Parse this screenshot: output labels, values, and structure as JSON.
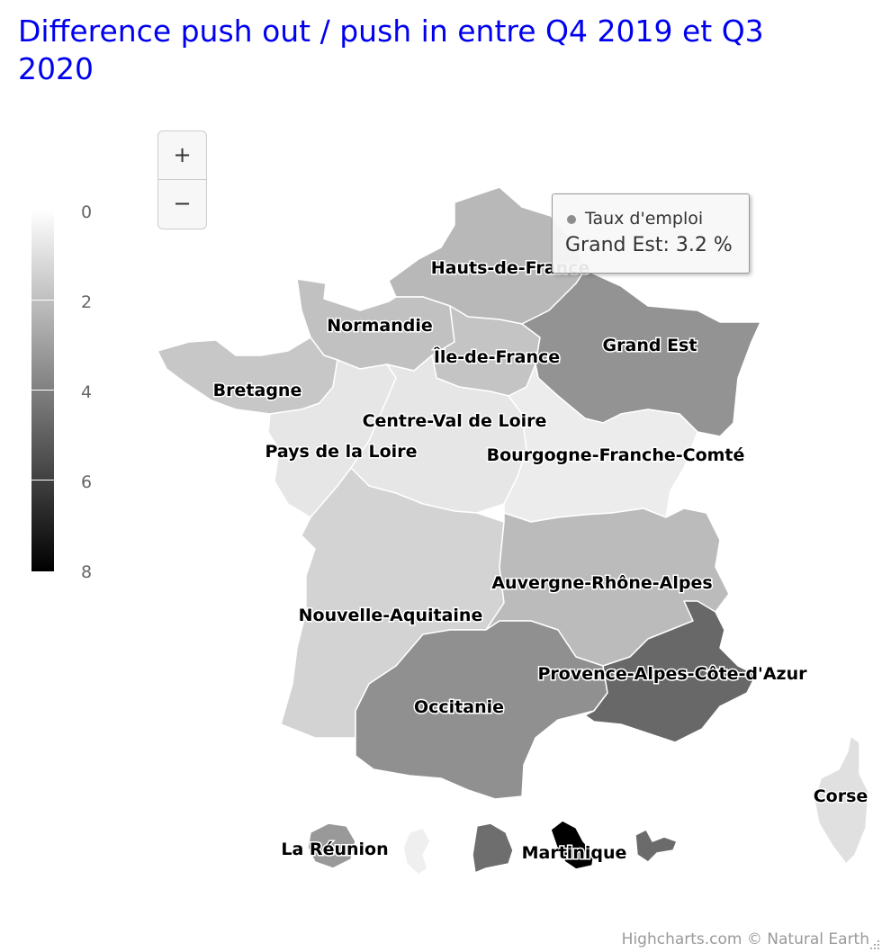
{
  "title": "Difference push out / push in entre Q4 2019 et Q3 2020",
  "zoom": {
    "in_label": "+",
    "out_label": "−"
  },
  "colorAxis": {
    "min": 0,
    "max": 8,
    "min_color": "#ffffff",
    "max_color": "#000000",
    "ticks": [
      "0",
      "2",
      "4",
      "6",
      "8"
    ]
  },
  "tooltip": {
    "series_name": "Taux d'emploi",
    "point_text": "Grand Est: 3.2 %",
    "dot_color": "#8e8e8e"
  },
  "chart_data": {
    "type": "map",
    "series_name": "Taux d'emploi",
    "unit": "%",
    "color_axis_range": [
      0,
      8
    ],
    "regions": [
      {
        "name": "Hauts-de-France",
        "value": 2.0
      },
      {
        "name": "Normandie",
        "value": 1.7
      },
      {
        "name": "Île-de-France",
        "value": 1.6
      },
      {
        "name": "Grand Est",
        "value": 3.2
      },
      {
        "name": "Bretagne",
        "value": 1.5
      },
      {
        "name": "Centre-Val de Loire",
        "value": 0.5
      },
      {
        "name": "Pays de la Loire",
        "value": 0.5
      },
      {
        "name": "Bourgogne-Franche-Comté",
        "value": 0.3
      },
      {
        "name": "Auvergne-Rhône-Alpes",
        "value": 1.9
      },
      {
        "name": "Nouvelle-Aquitaine",
        "value": 1.1
      },
      {
        "name": "Occitanie",
        "value": 3.3
      },
      {
        "name": "Provence-Alpes-Côte-d'Azur",
        "value": 4.6
      },
      {
        "name": "Corse",
        "value": 0.7
      },
      {
        "name": "La Réunion",
        "value": 3.0
      },
      {
        "name": "Mayotte",
        "value": 0.2
      },
      {
        "name": "Guyane",
        "value": 4.4
      },
      {
        "name": "Martinique",
        "value": 8.0
      },
      {
        "name": "Guadeloupe",
        "value": 4.5
      }
    ]
  },
  "credits": "Highcharts.com © Natural Earth"
}
